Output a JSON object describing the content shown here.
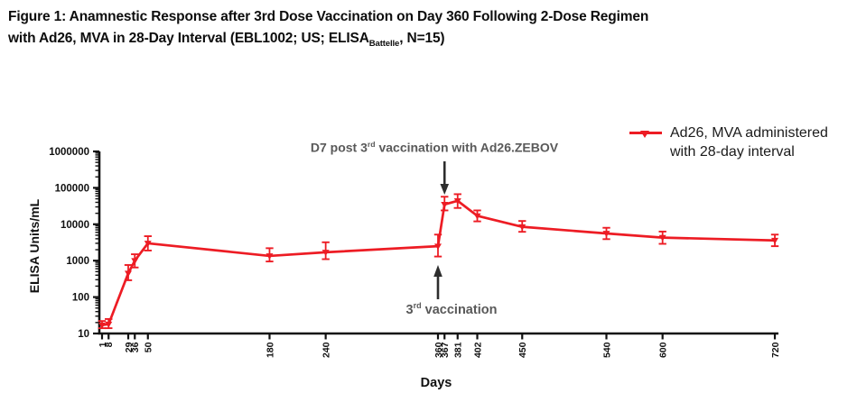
{
  "title": {
    "line1": "Figure 1: Anamnestic Response after 3rd Dose Vaccination on Day 360 Following 2-Dose Regimen",
    "line2_prefix": "with Ad26, MVA in 28-Day Interval (EBL1002; US; ELISA",
    "line2_sub": "Battelle",
    "line2_suffix": ", N=15)"
  },
  "legend": {
    "line1": "Ad26, MVA administered",
    "line2": "with 28-day interval"
  },
  "annotations": {
    "d7": {
      "pre": "D7 post 3",
      "sup": "rd",
      "post": " vaccination with Ad26.ZEBOV",
      "arrow": "down",
      "anchor_day": 367
    },
    "third": {
      "pre": "3",
      "sup": "rd",
      "post": " vaccination",
      "arrow": "up",
      "anchor_day": 360
    }
  },
  "colors": {
    "series": "#ed1c24",
    "axis": "#111111",
    "arrow": "#2d2d2d",
    "annotation_text": "#595959"
  },
  "chart_data": {
    "type": "line",
    "title": "",
    "xlabel": "Days",
    "ylabel": "ELISA Units/mL",
    "x_scale": "linear",
    "y_scale": "log",
    "xlim": [
      1,
      730
    ],
    "ylim": [
      10,
      1000000
    ],
    "x_ticks": [
      1,
      8,
      29,
      36,
      50,
      180,
      240,
      360,
      367,
      381,
      402,
      450,
      540,
      600,
      720
    ],
    "y_ticks": [
      10,
      100,
      1000,
      10000,
      100000,
      1000000
    ],
    "grid": false,
    "legend_position": "top-right",
    "series": [
      {
        "name": "Ad26, MVA administered with 28-day interval",
        "color": "#ed1c24",
        "marker": "triangle-down",
        "error_bars": true,
        "points": [
          {
            "day": 1,
            "value": 17,
            "lo": 14,
            "hi": 22
          },
          {
            "day": 8,
            "value": 18,
            "lo": 14,
            "hi": 25
          },
          {
            "day": 29,
            "value": 450,
            "lo": 290,
            "hi": 760
          },
          {
            "day": 36,
            "value": 1000,
            "lo": 650,
            "hi": 1500
          },
          {
            "day": 50,
            "value": 3000,
            "lo": 1900,
            "hi": 4700
          },
          {
            "day": 180,
            "value": 1350,
            "lo": 950,
            "hi": 2200
          },
          {
            "day": 240,
            "value": 1700,
            "lo": 1100,
            "hi": 3200
          },
          {
            "day": 360,
            "value": 2500,
            "lo": 1300,
            "hi": 5200
          },
          {
            "day": 367,
            "value": 35000,
            "lo": 24000,
            "hi": 57000
          },
          {
            "day": 381,
            "value": 44000,
            "lo": 28000,
            "hi": 67000
          },
          {
            "day": 402,
            "value": 17000,
            "lo": 12000,
            "hi": 24000
          },
          {
            "day": 450,
            "value": 8500,
            "lo": 6200,
            "hi": 12300
          },
          {
            "day": 540,
            "value": 5600,
            "lo": 3900,
            "hi": 8000
          },
          {
            "day": 600,
            "value": 4300,
            "lo": 2900,
            "hi": 6300
          },
          {
            "day": 720,
            "value": 3600,
            "lo": 2500,
            "hi": 5200
          }
        ]
      }
    ]
  }
}
